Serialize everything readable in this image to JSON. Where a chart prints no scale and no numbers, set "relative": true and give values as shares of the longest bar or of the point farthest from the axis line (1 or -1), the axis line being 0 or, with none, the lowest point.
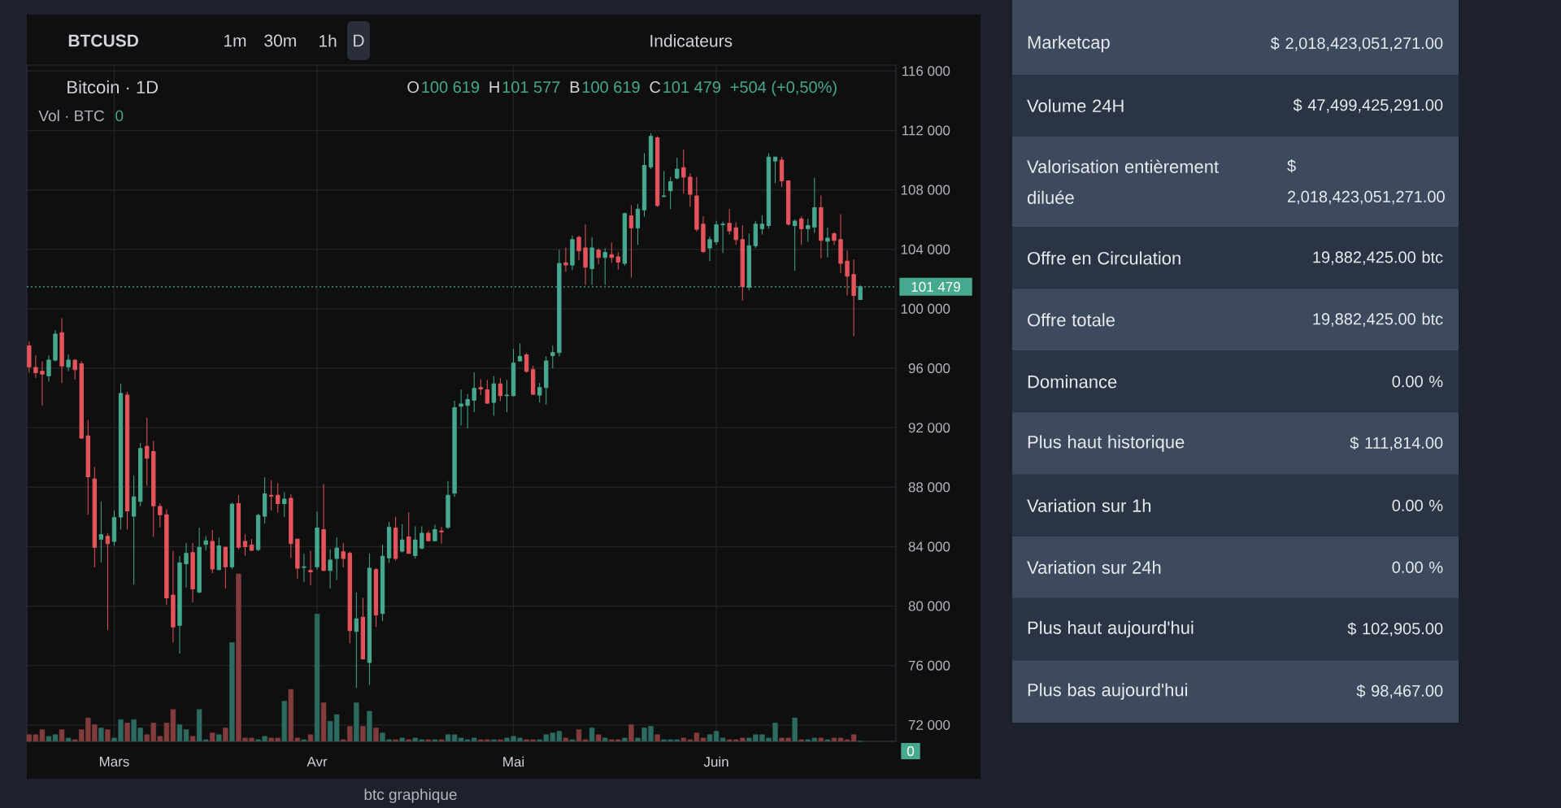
{
  "chart_data": [
    {
      "type": "candlestick",
      "title": "Bitcoin · 1D",
      "categories": [
        null,
        null,
        null,
        null,
        null,
        null,
        null,
        null,
        null,
        null,
        null,
        null,
        null,
        "Mars",
        null,
        null,
        null,
        null,
        null,
        null,
        null,
        null,
        null,
        null,
        null,
        null,
        null,
        null,
        null,
        null,
        null,
        null,
        null,
        null,
        null,
        null,
        null,
        null,
        null,
        null,
        null,
        null,
        null,
        null,
        "Avr",
        null,
        null,
        null,
        null,
        null,
        null,
        null,
        null,
        null,
        null,
        null,
        null,
        null,
        null,
        null,
        null,
        null,
        null,
        null,
        null,
        null,
        null,
        null,
        null,
        null,
        null,
        null,
        null,
        null,
        "Mai",
        null,
        null,
        null,
        null,
        null,
        null,
        null,
        null,
        null,
        null,
        null,
        null,
        null,
        null,
        null,
        null,
        null,
        null,
        null,
        null,
        null,
        null,
        null,
        null,
        null,
        null,
        null,
        null,
        null,
        null,
        "Juin",
        null,
        null,
        null,
        null,
        null,
        null,
        null,
        null,
        null,
        null,
        null,
        null,
        null,
        null,
        null,
        null,
        null,
        null,
        null,
        null,
        null,
        null
      ],
      "ohlc": [
        [
          97500,
          97800,
          95700,
          96100
        ],
        [
          96050,
          96850,
          95350,
          95700
        ],
        [
          95800,
          96450,
          93500,
          95600
        ],
        [
          95500,
          96850,
          95100,
          96550
        ],
        [
          96550,
          98550,
          96450,
          98300
        ],
        [
          98400,
          99350,
          95000,
          96150
        ],
        [
          96100,
          96900,
          95800,
          96550
        ],
        [
          96550,
          96600,
          95250,
          95900
        ],
        [
          96300,
          96450,
          91250,
          91300
        ],
        [
          91450,
          92500,
          86150,
          88700
        ],
        [
          88550,
          89350,
          82600,
          83950
        ],
        [
          84500,
          87000,
          82950,
          84800
        ],
        [
          84700,
          84900,
          78400,
          84200
        ],
        [
          84350,
          86400,
          84050,
          85950
        ],
        [
          86000,
          94950,
          85150,
          94300
        ],
        [
          94200,
          94400,
          85150,
          86400
        ],
        [
          86050,
          88750,
          81450,
          87350
        ],
        [
          87050,
          90950,
          86700,
          90600
        ],
        [
          90750,
          92650,
          88100,
          89950
        ],
        [
          90400,
          91100,
          84650,
          86750
        ],
        [
          86700,
          86900,
          85300,
          86150
        ],
        [
          86150,
          86500,
          80100,
          80550
        ],
        [
          80750,
          83700,
          77550,
          78600
        ],
        [
          78700,
          83350,
          76800,
          82900
        ],
        [
          82850,
          84250,
          81250,
          83550
        ],
        [
          83600,
          84250,
          80250,
          81150
        ],
        [
          80950,
          85250,
          80850,
          83950
        ],
        [
          84150,
          84700,
          83750,
          84400
        ],
        [
          84350,
          85100,
          82200,
          82500
        ],
        [
          82450,
          84600,
          82400,
          84050
        ],
        [
          83950,
          84000,
          81200,
          82650
        ],
        [
          82650,
          86950,
          82500,
          86850
        ],
        [
          86900,
          87450,
          83800,
          83950
        ],
        [
          84350,
          84800,
          83400,
          84000
        ],
        [
          84100,
          84500,
          83700,
          83750
        ],
        [
          83800,
          86200,
          83700,
          86100
        ],
        [
          86050,
          88650,
          85550,
          87550
        ],
        [
          87450,
          88450,
          86450,
          87400
        ],
        [
          87450,
          88250,
          86300,
          86900
        ],
        [
          86900,
          87650,
          86000,
          87200
        ],
        [
          87250,
          87500,
          83250,
          84200
        ],
        [
          84500,
          84500,
          81850,
          82550
        ],
        [
          82600,
          83500,
          81600,
          82650
        ],
        [
          82400,
          83700,
          81400,
          82300
        ],
        [
          82650,
          86350,
          82450,
          85250
        ],
        [
          85150,
          88200,
          82350,
          82400
        ],
        [
          82400,
          83800,
          81200,
          83100
        ],
        [
          83200,
          84600,
          81750,
          83900
        ],
        [
          83650,
          84250,
          82600,
          83200
        ],
        [
          83550,
          83650,
          77500,
          78350
        ],
        [
          78300,
          80900,
          74500,
          79150
        ],
        [
          79250,
          80550,
          76400,
          76450
        ],
        [
          76200,
          83500,
          74700,
          82550
        ],
        [
          82450,
          82550,
          78600,
          79400
        ],
        [
          79500,
          84100,
          79000,
          83350
        ],
        [
          83250,
          85650,
          82900,
          85300
        ],
        [
          85250,
          86000,
          83050,
          83200
        ],
        [
          83700,
          85500,
          83600,
          84450
        ],
        [
          84650,
          86300,
          83500,
          83550
        ],
        [
          83400,
          85350,
          83200,
          84450
        ],
        [
          83900,
          85350,
          83800,
          84900
        ],
        [
          84900,
          85050,
          84350,
          84400
        ],
        [
          84400,
          85450,
          84350,
          85150
        ],
        [
          85050,
          85300,
          84200,
          85000
        ],
        [
          85300,
          88400,
          85200,
          87450
        ],
        [
          87600,
          93800,
          87350,
          93350
        ],
        [
          93450,
          94550,
          92150,
          93600
        ],
        [
          93500,
          94250,
          91950,
          93900
        ],
        [
          93850,
          95700,
          93050,
          94650
        ],
        [
          94700,
          95250,
          94200,
          94600
        ],
        [
          94550,
          95200,
          93600,
          93650
        ],
        [
          93700,
          95450,
          92800,
          94950
        ],
        [
          94950,
          95300,
          93800,
          94150
        ],
        [
          94150,
          95200,
          93050,
          94200
        ],
        [
          94150,
          97300,
          94100,
          96350
        ],
        [
          96500,
          97650,
          96450,
          96800
        ],
        [
          96900,
          97000,
          95700,
          95800
        ],
        [
          95900,
          96150,
          94200,
          94250
        ],
        [
          94200,
          95000,
          93700,
          94700
        ],
        [
          94700,
          96800,
          93550,
          96500
        ],
        [
          96850,
          97500,
          96000,
          97050
        ],
        [
          97050,
          103950,
          96800,
          103050
        ],
        [
          103100,
          104100,
          102500,
          102950
        ],
        [
          102950,
          104900,
          102600,
          104650
        ],
        [
          104800,
          104900,
          103300,
          103900
        ],
        [
          104100,
          105650,
          101600,
          102800
        ],
        [
          102700,
          104800,
          101600,
          104100
        ],
        [
          103950,
          104050,
          103000,
          103450
        ],
        [
          103450,
          104050,
          101600,
          103800
        ],
        [
          103650,
          104450,
          103100,
          103450
        ],
        [
          103500,
          103800,
          102650,
          103150
        ],
        [
          103050,
          106450,
          102900,
          106400
        ],
        [
          106250,
          106950,
          102100,
          105450
        ],
        [
          105450,
          107050,
          104300,
          106700
        ],
        [
          106650,
          110450,
          106200,
          109650
        ],
        [
          109550,
          111800,
          109400,
          111600
        ],
        [
          111500,
          111600,
          106850,
          106950
        ],
        [
          107550,
          109250,
          107500,
          107600
        ],
        [
          107950,
          108850,
          106700,
          108550
        ],
        [
          108800,
          110150,
          108700,
          109400
        ],
        [
          109500,
          110700,
          107750,
          108850
        ],
        [
          108850,
          109100,
          106850,
          107700
        ],
        [
          107600,
          108850,
          105200,
          105350
        ],
        [
          105700,
          106200,
          103750,
          103850
        ],
        [
          104100,
          104850,
          103200,
          104650
        ],
        [
          104500,
          105900,
          104300,
          105650
        ],
        [
          105650,
          105850,
          103750,
          105700
        ],
        [
          105750,
          106700,
          105000,
          105250
        ],
        [
          105450,
          105800,
          104300,
          104650
        ],
        [
          104650,
          105600,
          100550,
          101500
        ],
        [
          101450,
          105050,
          101250,
          104250
        ],
        [
          104250,
          105900,
          104100,
          105700
        ],
        [
          105400,
          106250,
          105000,
          105700
        ],
        [
          105600,
          110450,
          105400,
          110200
        ],
        [
          109950,
          110200,
          108450,
          110200
        ],
        [
          110000,
          110200,
          108200,
          108600
        ],
        [
          108600,
          108600,
          105600,
          105700
        ],
        [
          105600,
          106000,
          102550,
          105900
        ],
        [
          106050,
          106200,
          104300,
          105400
        ],
        [
          105400,
          106050,
          104500,
          105600
        ],
        [
          105500,
          108800,
          105100,
          106800
        ],
        [
          106800,
          107600,
          103400,
          104600
        ],
        [
          104550,
          105450,
          103450,
          104750
        ],
        [
          105050,
          105150,
          104300,
          104600
        ],
        [
          104650,
          106350,
          102400,
          103050
        ],
        [
          103200,
          103900,
          100900,
          102200
        ],
        [
          102300,
          103300,
          98150,
          100900
        ],
        [
          100619,
          101577,
          100619,
          101479
        ]
      ],
      "colors": [
        "#e5545c",
        "#e5545c",
        "#e5545c",
        "#46a98f",
        "#46a98f",
        "#e5545c",
        "#46a98f",
        "#e5545c",
        "#e5545c",
        "#e5545c",
        "#e5545c",
        "#46a98f",
        "#e5545c",
        "#46a98f",
        "#46a98f",
        "#e5545c",
        "#46a98f",
        "#46a98f",
        "#e5545c",
        "#e5545c",
        "#e5545c",
        "#e5545c",
        "#e5545c",
        "#46a98f",
        "#46a98f",
        "#e5545c",
        "#46a98f",
        "#46a98f",
        "#e5545c",
        "#46a98f",
        "#e5545c",
        "#46a98f",
        "#e5545c",
        "#e5545c",
        "#e5545c",
        "#46a98f",
        "#46a98f",
        "#e5545c",
        "#e5545c",
        "#46a98f",
        "#e5545c",
        "#e5545c",
        "#46a98f",
        "#e5545c",
        "#46a98f",
        "#e5545c",
        "#46a98f",
        "#46a98f",
        "#e5545c",
        "#e5545c",
        "#46a98f",
        "#e5545c",
        "#46a98f",
        "#e5545c",
        "#46a98f",
        "#46a98f",
        "#e5545c",
        "#46a98f",
        "#e5545c",
        "#46a98f",
        "#46a98f",
        "#e5545c",
        "#46a98f",
        "#e5545c",
        "#46a98f",
        "#46a98f",
        "#46a98f",
        "#46a98f",
        "#46a98f",
        "#e5545c",
        "#e5545c",
        "#46a98f",
        "#e5545c",
        "#46a98f",
        "#46a98f",
        "#46a98f",
        "#e5545c",
        "#e5545c",
        "#46a98f",
        "#46a98f",
        "#46a98f",
        "#46a98f",
        "#e5545c",
        "#46a98f",
        "#e5545c",
        "#e5545c",
        "#46a98f",
        "#e5545c",
        "#46a98f",
        "#e5545c",
        "#e5545c",
        "#46a98f",
        "#e5545c",
        "#46a98f",
        "#46a98f",
        "#46a98f",
        "#e5545c",
        "#46a98f",
        "#46a98f",
        "#46a98f",
        "#e5545c",
        "#e5545c",
        "#e5545c",
        "#e5545c",
        "#46a98f",
        "#46a98f",
        "#46a98f",
        "#e5545c",
        "#e5545c",
        "#e5545c",
        "#46a98f",
        "#46a98f",
        "#46a98f",
        "#46a98f",
        "#46a98f",
        "#e5545c",
        "#e5545c",
        "#46a98f",
        "#e5545c",
        "#46a98f",
        "#46a98f",
        "#e5545c",
        "#46a98f",
        "#e5545c",
        "#e5545c",
        "#e5545c",
        "#e5545c",
        "#46a98f"
      ],
      "ylim": [
        70900,
        116400
      ],
      "yticks": [
        {
          "value": 72000,
          "label": "72 000"
        },
        {
          "value": 76000,
          "label": "76 000"
        },
        {
          "value": 80000,
          "label": "80 000"
        },
        {
          "value": 84000,
          "label": "84 000"
        },
        {
          "value": 88000,
          "label": "88 000"
        },
        {
          "value": 92000,
          "label": "92 000"
        },
        {
          "value": 96000,
          "label": "96 000"
        },
        {
          "value": 100000,
          "label": "100 000"
        },
        {
          "value": 104000,
          "label": "104 000"
        },
        {
          "value": 108000,
          "label": "108 000"
        },
        {
          "value": 112000,
          "label": "112 000"
        },
        {
          "value": 116000,
          "label": "116 000"
        }
      ],
      "grid": true,
      "ref_lines": [
        {
          "axis": "y",
          "value": 101479,
          "label": "101 479",
          "color": "#46a98f",
          "line_style": "dotted"
        }
      ],
      "annotations": [
        "BTCUSD",
        "1m",
        "30m",
        "1h",
        "D",
        "Indicateurs",
        "O",
        "100 619",
        "H",
        "101 577",
        "B",
        "100 619",
        "C",
        "101 479",
        "+504 (+0,50%)",
        "btc graphique"
      ]
    },
    {
      "type": "bar",
      "title": "Vol · BTC",
      "relative": true,
      "categories": [
        null,
        null,
        null,
        null,
        null,
        null,
        null,
        null,
        null,
        null,
        null,
        null,
        null,
        null,
        null,
        null,
        null,
        null,
        null,
        null,
        null,
        null,
        null,
        null,
        null,
        null,
        null,
        null,
        null,
        null,
        null,
        null,
        null,
        null,
        null,
        null,
        null,
        null,
        null,
        null,
        null,
        null,
        null,
        null,
        null,
        null,
        null,
        null,
        null,
        null,
        null,
        null,
        null,
        null,
        null,
        null,
        null,
        null,
        null,
        null,
        null,
        null,
        null,
        null,
        null,
        null,
        null,
        null,
        null,
        null,
        null,
        null,
        null,
        null,
        null,
        null,
        null,
        null,
        null,
        null,
        null,
        null,
        null,
        null,
        null,
        null,
        null,
        null,
        null,
        null,
        null,
        null,
        null,
        null,
        null,
        null,
        null,
        null,
        null,
        null,
        null,
        null,
        null,
        null,
        null,
        null,
        null,
        null,
        null,
        null,
        null,
        null,
        null,
        null,
        null,
        null,
        null,
        null,
        null,
        null,
        null,
        null,
        null,
        null,
        null,
        null,
        null,
        null
      ],
      "values": [
        0.04,
        0.04,
        0.07,
        0.03,
        0.04,
        0.07,
        0.02,
        0.01,
        0.07,
        0.14,
        0.1,
        0.08,
        0.07,
        0.02,
        0.13,
        0.11,
        0.13,
        0.08,
        0.04,
        0.11,
        0.03,
        0.11,
        0.19,
        0.1,
        0.07,
        0.03,
        0.19,
        0.01,
        0.05,
        0.04,
        0.08,
        0.59,
        1,
        0.02,
        0.02,
        0.01,
        0.03,
        0.02,
        0.02,
        0.24,
        0.31,
        0.02,
        0.01,
        0.04,
        0.76,
        0.23,
        0.12,
        0.16,
        0.01,
        0.09,
        0.23,
        0.09,
        0.18,
        0.08,
        0.05,
        0.01,
        0.01,
        0.02,
        0.01,
        0.02,
        0.01,
        0.01,
        0.01,
        0.01,
        0.04,
        0.04,
        0.02,
        0.01,
        0.02,
        0.01,
        0.01,
        0.01,
        0.01,
        0.02,
        0.03,
        0.02,
        0.01,
        0.01,
        0.01,
        0.04,
        0.05,
        0.06,
        0.02,
        0.01,
        0.07,
        0.01,
        0.08,
        0.04,
        0.02,
        0.01,
        0.01,
        0.02,
        0.1,
        0.02,
        0.08,
        0.09,
        0.04,
        0.01,
        0.01,
        0.01,
        0.02,
        0.01,
        0.05,
        0.02,
        0.04,
        0.06,
        0.02,
        0.01,
        0.01,
        0.02,
        0.02,
        0.04,
        0.04,
        0.02,
        0.11,
        0.02,
        0.02,
        0.14,
        0.01,
        0.01,
        0.02,
        0.02,
        0.01,
        0.02,
        0.02,
        0.01,
        0.04,
        0
      ],
      "colors": [
        "#823c3e",
        "#823c3e",
        "#823c3e",
        "#2d6a5f",
        "#2d6a5f",
        "#823c3e",
        "#2d6a5f",
        "#823c3e",
        "#823c3e",
        "#823c3e",
        "#823c3e",
        "#2d6a5f",
        "#823c3e",
        "#2d6a5f",
        "#2d6a5f",
        "#823c3e",
        "#2d6a5f",
        "#2d6a5f",
        "#823c3e",
        "#823c3e",
        "#823c3e",
        "#823c3e",
        "#823c3e",
        "#2d6a5f",
        "#2d6a5f",
        "#823c3e",
        "#2d6a5f",
        "#2d6a5f",
        "#823c3e",
        "#2d6a5f",
        "#823c3e",
        "#2d6a5f",
        "#823c3e",
        "#823c3e",
        "#823c3e",
        "#2d6a5f",
        "#2d6a5f",
        "#823c3e",
        "#823c3e",
        "#2d6a5f",
        "#823c3e",
        "#823c3e",
        "#2d6a5f",
        "#823c3e",
        "#2d6a5f",
        "#823c3e",
        "#2d6a5f",
        "#2d6a5f",
        "#823c3e",
        "#823c3e",
        "#2d6a5f",
        "#823c3e",
        "#2d6a5f",
        "#823c3e",
        "#2d6a5f",
        "#2d6a5f",
        "#823c3e",
        "#2d6a5f",
        "#823c3e",
        "#2d6a5f",
        "#2d6a5f",
        "#823c3e",
        "#2d6a5f",
        "#823c3e",
        "#2d6a5f",
        "#2d6a5f",
        "#2d6a5f",
        "#2d6a5f",
        "#2d6a5f",
        "#823c3e",
        "#823c3e",
        "#2d6a5f",
        "#823c3e",
        "#2d6a5f",
        "#2d6a5f",
        "#2d6a5f",
        "#823c3e",
        "#823c3e",
        "#2d6a5f",
        "#2d6a5f",
        "#2d6a5f",
        "#2d6a5f",
        "#823c3e",
        "#2d6a5f",
        "#823c3e",
        "#823c3e",
        "#2d6a5f",
        "#823c3e",
        "#2d6a5f",
        "#823c3e",
        "#823c3e",
        "#2d6a5f",
        "#823c3e",
        "#2d6a5f",
        "#2d6a5f",
        "#2d6a5f",
        "#823c3e",
        "#2d6a5f",
        "#2d6a5f",
        "#2d6a5f",
        "#823c3e",
        "#823c3e",
        "#823c3e",
        "#823c3e",
        "#2d6a5f",
        "#2d6a5f",
        "#2d6a5f",
        "#823c3e",
        "#823c3e",
        "#823c3e",
        "#2d6a5f",
        "#2d6a5f",
        "#2d6a5f",
        "#2d6a5f",
        "#2d6a5f",
        "#823c3e",
        "#823c3e",
        "#2d6a5f",
        "#823c3e",
        "#2d6a5f",
        "#2d6a5f",
        "#823c3e",
        "#2d6a5f",
        "#823c3e",
        "#823c3e",
        "#823c3e",
        "#823c3e",
        "#2d6a5f"
      ],
      "annotations": [
        "0",
        "0"
      ]
    },
    {
      "type": "other",
      "annotations": [
        "Marketcap",
        "$ 2,018,423,051,271.00",
        "Volume 24H",
        "$ 47,499,425,291.00",
        "Valorisation entièrement diluée",
        "$ 2,018,423,051,271.00",
        "Offre en Circulation",
        "19,882,425.00 btc",
        "Offre totale",
        "19,882,425.00 btc",
        "Dominance",
        "0.00 %",
        "Plus haut historique",
        "$ 111,814.00",
        "Variation sur 1h",
        "0.00 %",
        "Variation sur 24h",
        "0.00 %",
        "Plus haut aujourd'hui",
        "$ 102,905.00",
        "Plus bas aujourd'hui",
        "$ 98,467.00"
      ]
    }
  ]
}
